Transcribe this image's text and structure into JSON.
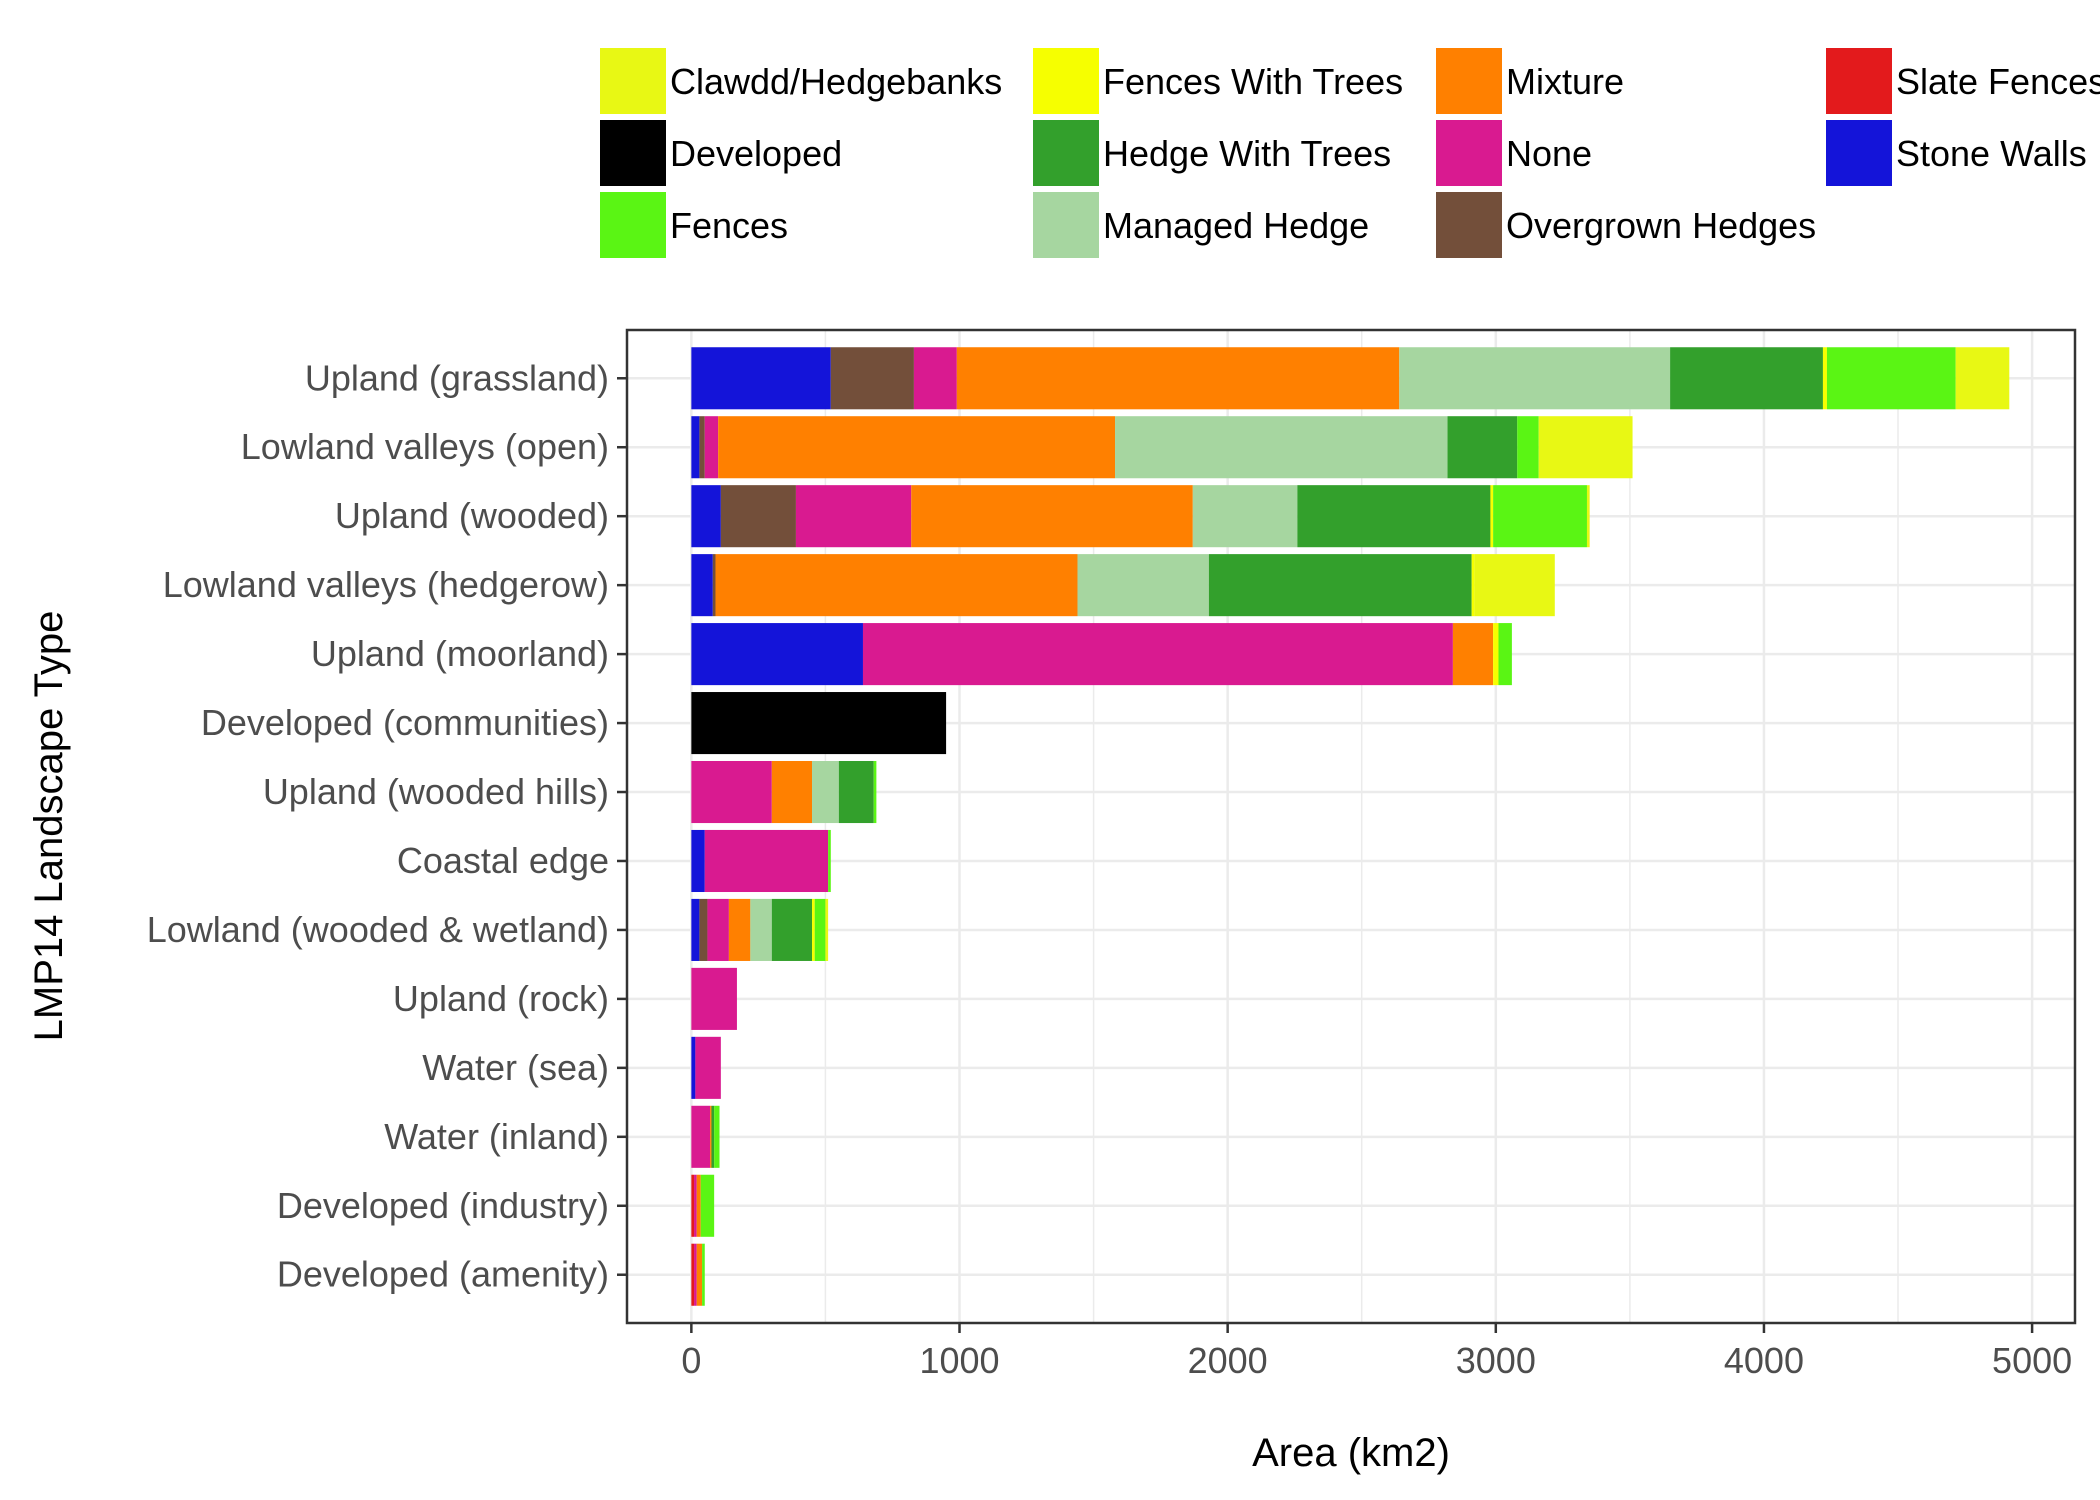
{
  "chart_data": {
    "type": "bar",
    "orientation": "horizontal",
    "stacked": true,
    "title": "",
    "xlabel": "Area (km2)",
    "ylabel": "LMP14 Landscape Type",
    "xlim": [
      -240,
      5160
    ],
    "xticks": [
      0,
      1000,
      2000,
      3000,
      4000,
      5000
    ],
    "grid": true,
    "legend_position": "top",
    "categories": [
      "Upland (grassland)",
      "Lowland valleys (open)",
      "Upland (wooded)",
      "Lowland valleys (hedgerow)",
      "Upland (moorland)",
      "Developed (communities)",
      "Upland (wooded hills)",
      "Coastal edge",
      "Lowland (wooded & wetland)",
      "Upland (rock)",
      "Water (sea)",
      "Water (inland)",
      "Developed (industry)",
      "Developed (amenity)"
    ],
    "stack_order": [
      "Stone Walls",
      "Slate Fences",
      "Overgrown Hedges",
      "None",
      "Mixture",
      "Managed Hedge",
      "Hedge With Trees",
      "Fences With Trees",
      "Fences",
      "Developed",
      "Clawdd/Hedgebanks"
    ],
    "series": [
      {
        "name": "Clawdd/Hedgebanks",
        "color": "#e8f814",
        "values": [
          200,
          350,
          10,
          300,
          0,
          0,
          0,
          0,
          10,
          0,
          0,
          0,
          0,
          0
        ]
      },
      {
        "name": "Developed",
        "color": "#000000",
        "values": [
          0,
          0,
          0,
          0,
          0,
          950,
          0,
          0,
          0,
          0,
          0,
          0,
          0,
          0
        ]
      },
      {
        "name": "Fences",
        "color": "#5af514",
        "values": [
          480,
          80,
          350,
          0,
          50,
          0,
          10,
          10,
          40,
          0,
          0,
          20,
          50,
          10
        ]
      },
      {
        "name": "Fences With Trees",
        "color": "#f6ff00",
        "values": [
          15,
          0,
          10,
          10,
          20,
          0,
          0,
          0,
          10,
          0,
          0,
          0,
          0,
          0
        ]
      },
      {
        "name": "Hedge With Trees",
        "color": "#33a02c",
        "values": [
          570,
          260,
          720,
          980,
          0,
          0,
          130,
          0,
          150,
          0,
          0,
          10,
          0,
          0
        ]
      },
      {
        "name": "Managed Hedge",
        "color": "#a6d6a0",
        "values": [
          1010,
          1240,
          390,
          490,
          0,
          0,
          100,
          0,
          80,
          0,
          0,
          0,
          0,
          0
        ]
      },
      {
        "name": "Mixture",
        "color": "#ff8000",
        "values": [
          1650,
          1480,
          1050,
          1350,
          150,
          0,
          150,
          0,
          80,
          0,
          0,
          5,
          15,
          20
        ]
      },
      {
        "name": "None",
        "color": "#d91a90",
        "values": [
          160,
          50,
          430,
          0,
          2200,
          0,
          300,
          460,
          80,
          170,
          95,
          70,
          10,
          10
        ]
      },
      {
        "name": "Overgrown Hedges",
        "color": "#734f3a",
        "values": [
          310,
          20,
          280,
          10,
          0,
          0,
          0,
          0,
          30,
          0,
          0,
          0,
          0,
          0
        ]
      },
      {
        "name": "Slate Fences",
        "color": "#e31a1c",
        "values": [
          0,
          0,
          0,
          0,
          0,
          0,
          0,
          0,
          0,
          0,
          0,
          0,
          10,
          10
        ]
      },
      {
        "name": "Stone Walls",
        "color": "#1414d9",
        "values": [
          520,
          30,
          110,
          80,
          640,
          0,
          0,
          50,
          30,
          0,
          15,
          0,
          0,
          0
        ]
      }
    ]
  }
}
